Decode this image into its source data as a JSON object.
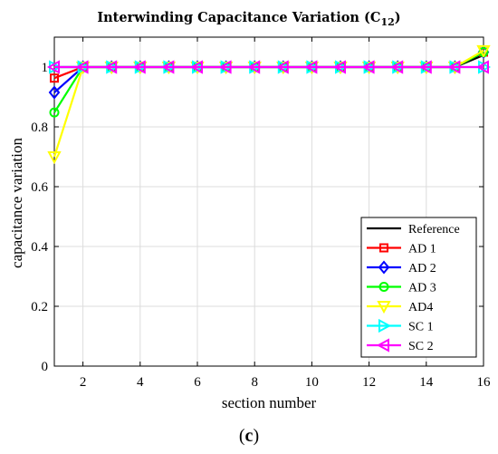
{
  "caption": {
    "open": "(",
    "letter": "c",
    "close": ")"
  },
  "chart_data": {
    "type": "line",
    "title": {
      "main": "Interwinding Capacitance Variation (C",
      "subscript": "12",
      "close": ")"
    },
    "xlabel": "section number",
    "ylabel": "capacitance variation",
    "xlim": [
      1,
      16
    ],
    "ylim": [
      0,
      1.1
    ],
    "xticks": [
      2,
      4,
      6,
      8,
      10,
      12,
      14,
      16
    ],
    "yticks": [
      0,
      0.2,
      0.4,
      0.6,
      0.8,
      1
    ],
    "ytick_labels": [
      "0",
      "0.2",
      "0.4",
      "0.6",
      "0.8",
      "1"
    ],
    "grid": true,
    "legend_position": "bottom-right",
    "x": [
      1,
      2,
      3,
      4,
      5,
      6,
      7,
      8,
      9,
      10,
      11,
      12,
      13,
      14,
      15,
      16
    ],
    "series": [
      {
        "name": "Reference",
        "color": "#000000",
        "marker": "none",
        "values": [
          1,
          1,
          1,
          1,
          1,
          1,
          1,
          1,
          1,
          1,
          1,
          1,
          1,
          1,
          1,
          1.04
        ]
      },
      {
        "name": "AD 1",
        "color": "#ff0000",
        "marker": "square",
        "values": [
          0.963,
          1,
          1,
          1,
          1,
          1,
          1,
          1,
          1,
          1,
          1,
          1,
          1,
          1,
          1,
          1.05
        ]
      },
      {
        "name": "AD 2",
        "color": "#0000ff",
        "marker": "diamond",
        "values": [
          0.915,
          1,
          1,
          1,
          1,
          1,
          1,
          1,
          1,
          1,
          1,
          1,
          1,
          1,
          1,
          1.05
        ]
      },
      {
        "name": "AD 3",
        "color": "#00ff00",
        "marker": "circle",
        "values": [
          0.848,
          1,
          1,
          1,
          1,
          1,
          1,
          1,
          1,
          1,
          1,
          1,
          1,
          1,
          1,
          1.05
        ]
      },
      {
        "name": "AD4",
        "color": "#ffff00",
        "marker": "triangle-down",
        "values": [
          0.7,
          1,
          1,
          1,
          1,
          1,
          1,
          1,
          1,
          1,
          1,
          1,
          1,
          1,
          1,
          1.055
        ]
      },
      {
        "name": "SC 1",
        "color": "#00ffff",
        "marker": "triangle-right",
        "values": [
          1,
          1,
          1,
          1,
          1,
          1,
          1,
          1,
          1,
          1,
          1,
          1,
          1,
          1,
          1,
          1
        ]
      },
      {
        "name": "SC 2",
        "color": "#ff00ff",
        "marker": "triangle-left",
        "values": [
          1,
          1,
          1,
          1,
          1,
          1,
          1,
          1,
          1,
          1,
          1,
          1,
          1,
          1,
          1,
          1
        ]
      }
    ]
  }
}
